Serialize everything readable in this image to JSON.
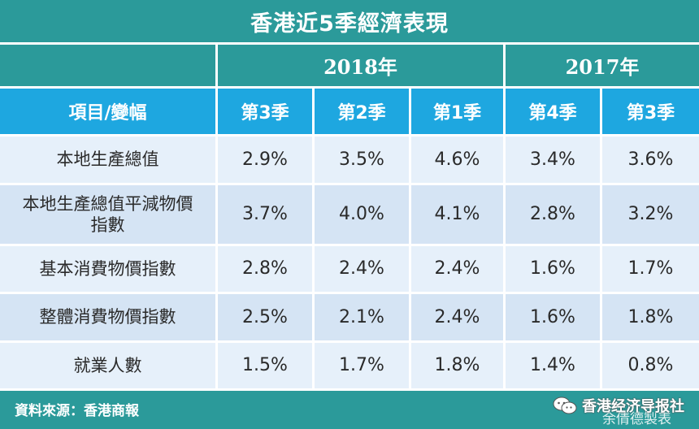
{
  "title": "香港近5季經濟表現",
  "years": [
    "2018年",
    "2017年"
  ],
  "header": {
    "item_label": "項目/變幅",
    "quarters": [
      "第3季",
      "第2季",
      "第1季",
      "第4季",
      "第3季"
    ]
  },
  "rows": [
    {
      "label": "本地生產總值",
      "values": [
        "2.9%",
        "3.5%",
        "4.6%",
        "3.4%",
        "3.6%"
      ]
    },
    {
      "label": "本地生產總值平減物價指數",
      "values": [
        "3.7%",
        "4.0%",
        "4.1%",
        "2.8%",
        "3.2%"
      ]
    },
    {
      "label": "基本消費物價指數",
      "values": [
        "2.8%",
        "2.4%",
        "2.4%",
        "1.6%",
        "1.7%"
      ]
    },
    {
      "label": "整體消費物價指數",
      "values": [
        "2.5%",
        "2.1%",
        "2.4%",
        "1.6%",
        "1.8%"
      ]
    },
    {
      "label": "就業人數",
      "values": [
        "1.5%",
        "1.7%",
        "1.8%",
        "1.4%",
        "0.8%"
      ]
    }
  ],
  "footer": {
    "source": "資料來源：香港商報",
    "credit": "余倩德製表",
    "watermark": "香港经济导报社"
  },
  "colors": {
    "title_bg": "#2b9a9a",
    "header_bg": "#1ea7e0",
    "row_light": "#e6f0fa",
    "row_dark": "#d5e4f4"
  }
}
